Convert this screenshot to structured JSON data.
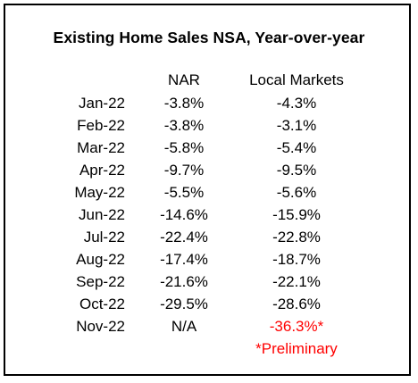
{
  "title": "Existing Home Sales NSA, Year-over-year",
  "headers": {
    "nar": "NAR",
    "local": "Local Markets"
  },
  "rows": [
    {
      "month": "Jan-22",
      "nar": "-3.8%",
      "local": "-4.3%"
    },
    {
      "month": "Feb-22",
      "nar": "-3.8%",
      "local": "-3.1%"
    },
    {
      "month": "Mar-22",
      "nar": "-5.8%",
      "local": "-5.4%"
    },
    {
      "month": "Apr-22",
      "nar": "-9.7%",
      "local": "-9.5%"
    },
    {
      "month": "May-22",
      "nar": "-5.5%",
      "local": "-5.6%"
    },
    {
      "month": "Jun-22",
      "nar": "-14.6%",
      "local": "-15.9%"
    },
    {
      "month": "Jul-22",
      "nar": "-22.4%",
      "local": "-22.8%"
    },
    {
      "month": "Aug-22",
      "nar": "-17.4%",
      "local": "-18.7%"
    },
    {
      "month": "Sep-22",
      "nar": "-21.6%",
      "local": "-22.1%"
    },
    {
      "month": "Oct-22",
      "nar": "-29.5%",
      "local": "-28.6%"
    },
    {
      "month": "Nov-22",
      "nar": "N/A",
      "local": "-36.3%*"
    }
  ],
  "footnote": "*Preliminary",
  "colors": {
    "preliminary": "#ff0000",
    "border": "#000000"
  }
}
